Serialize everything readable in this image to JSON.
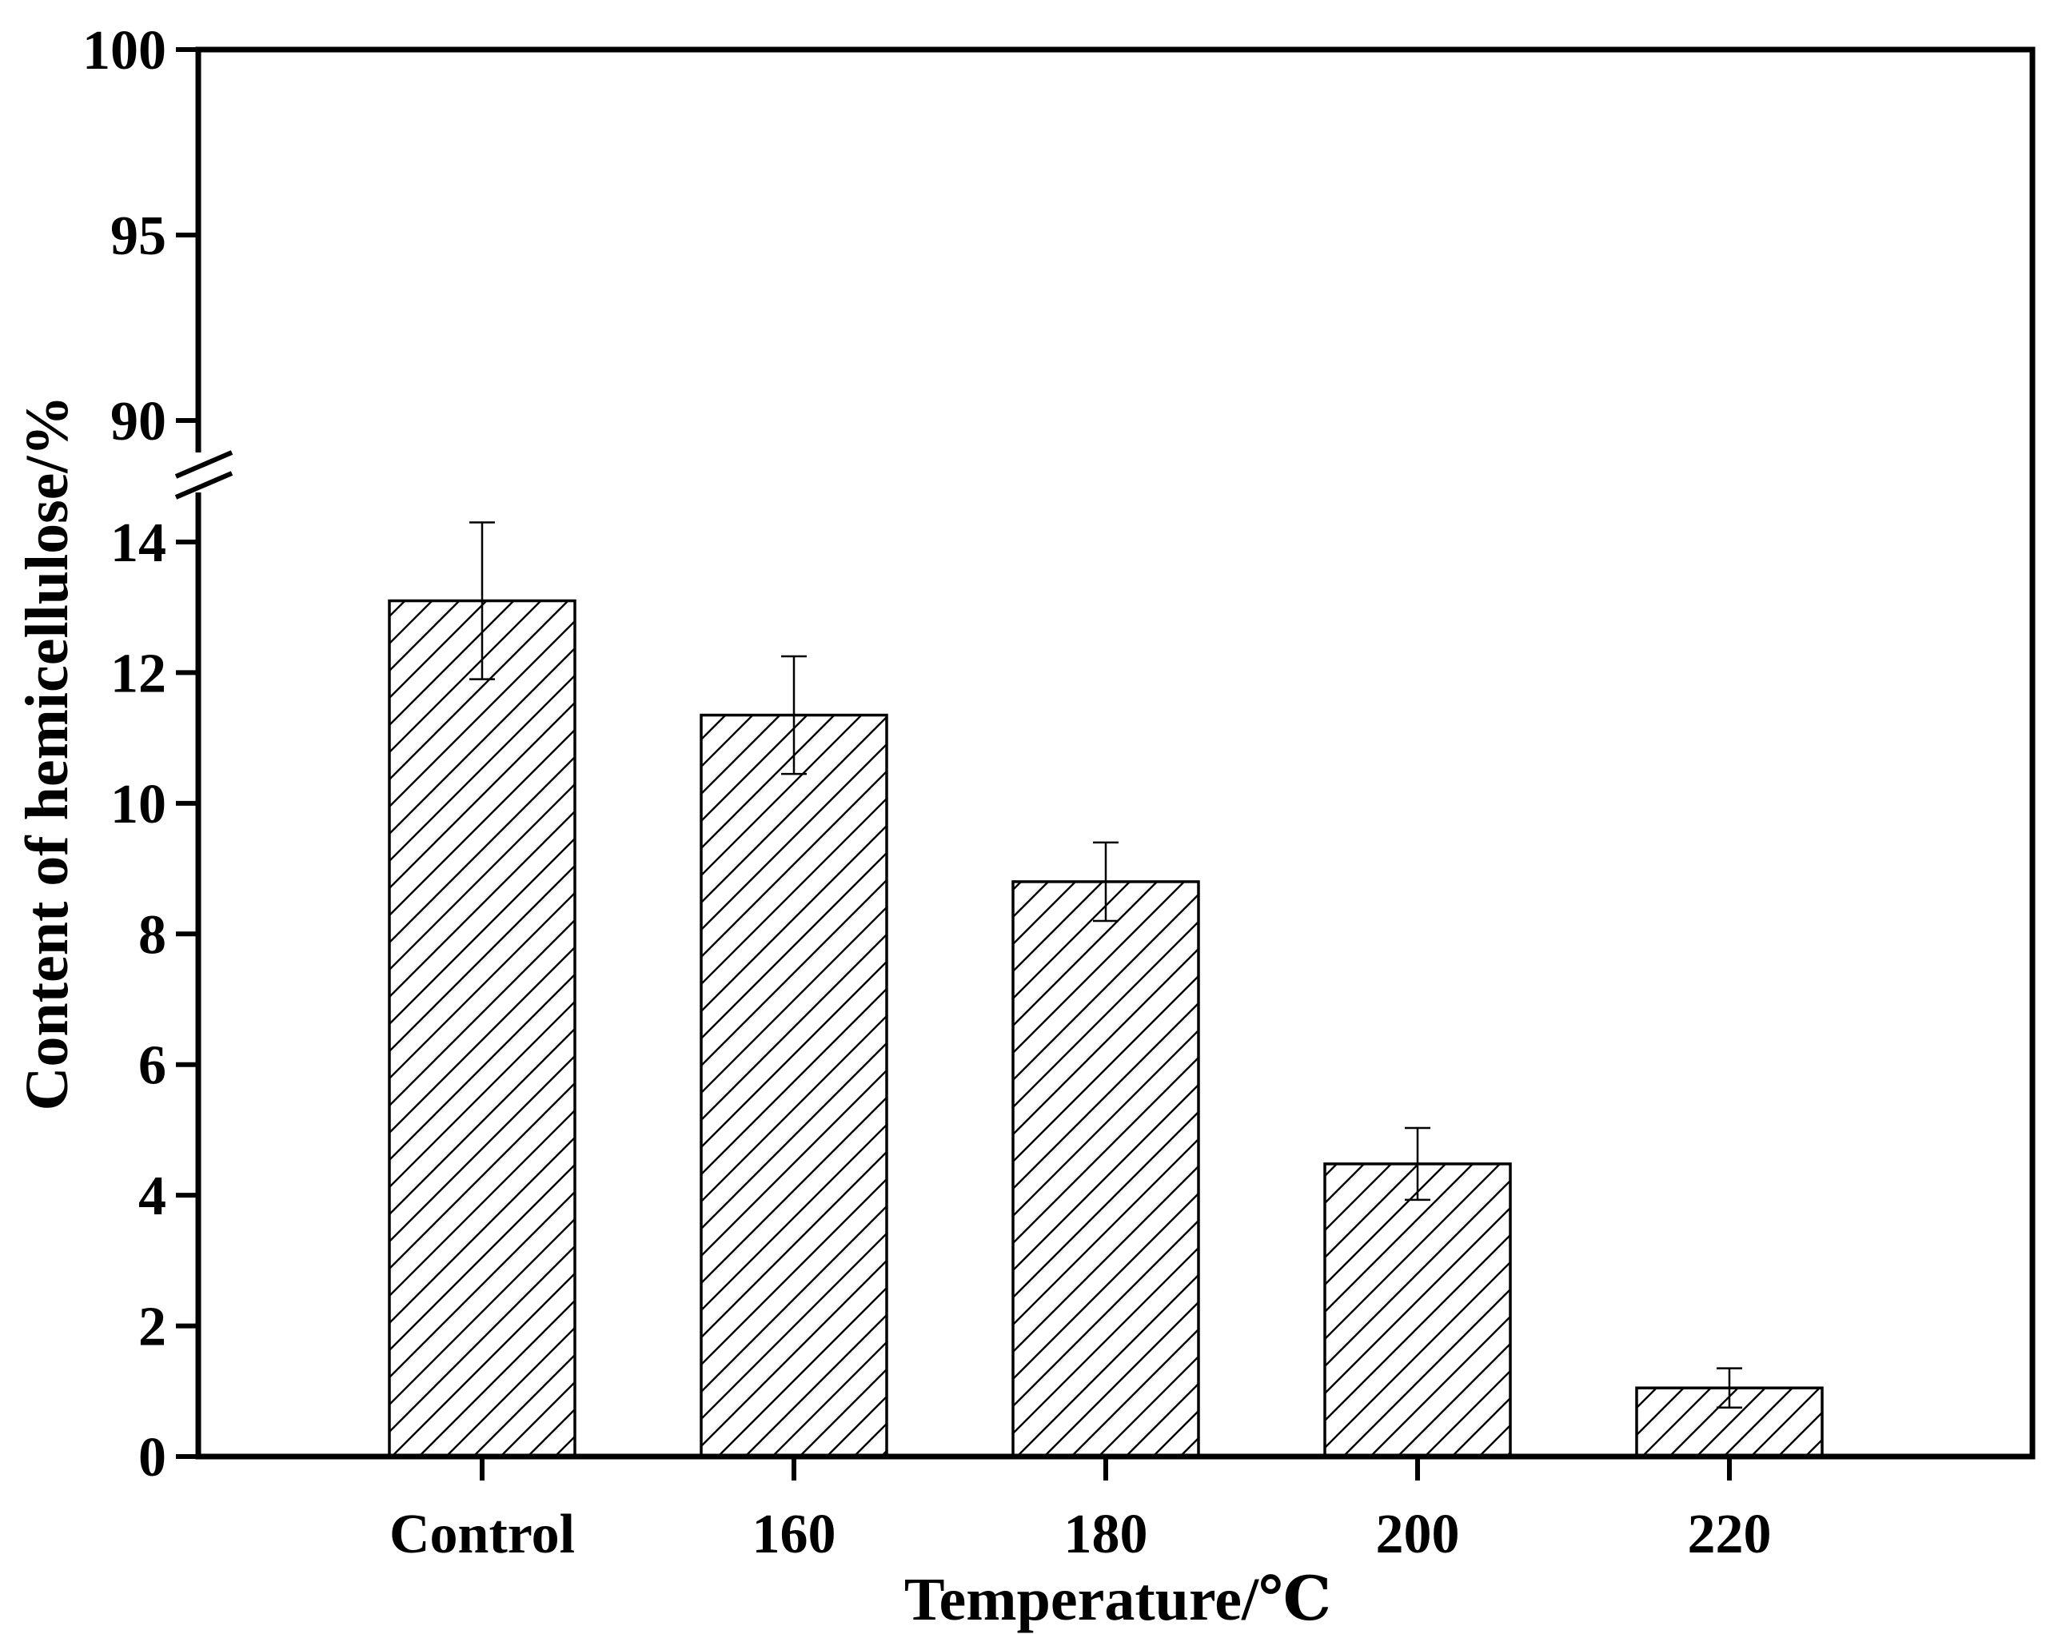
{
  "chart_data": {
    "type": "bar",
    "xlabel": "Temperature/℃",
    "ylabel": "Content of hemicellulose/%",
    "categories": [
      "Control",
      "160",
      "180",
      "200",
      "220"
    ],
    "series": [
      {
        "values": [
          13.1,
          11.35,
          8.8,
          4.48,
          1.05
        ],
        "error": [
          1.2,
          0.9,
          0.6,
          0.55,
          0.3
        ]
      }
    ],
    "y_axis_break": true,
    "ylim_lower": [
      0,
      14
    ],
    "ylim_upper": [
      88,
      100
    ],
    "yticks_lower": [
      "0",
      "2",
      "4",
      "6",
      "8",
      "10",
      "12",
      "14"
    ],
    "yticks_upper": [
      "90",
      "95",
      "100"
    ],
    "bar_fill": "diagonal-hatch",
    "colors": {
      "bar_stroke": "#000000",
      "hatch": "#000000",
      "background": "#ffffff"
    },
    "grid": false,
    "legend": "none"
  }
}
